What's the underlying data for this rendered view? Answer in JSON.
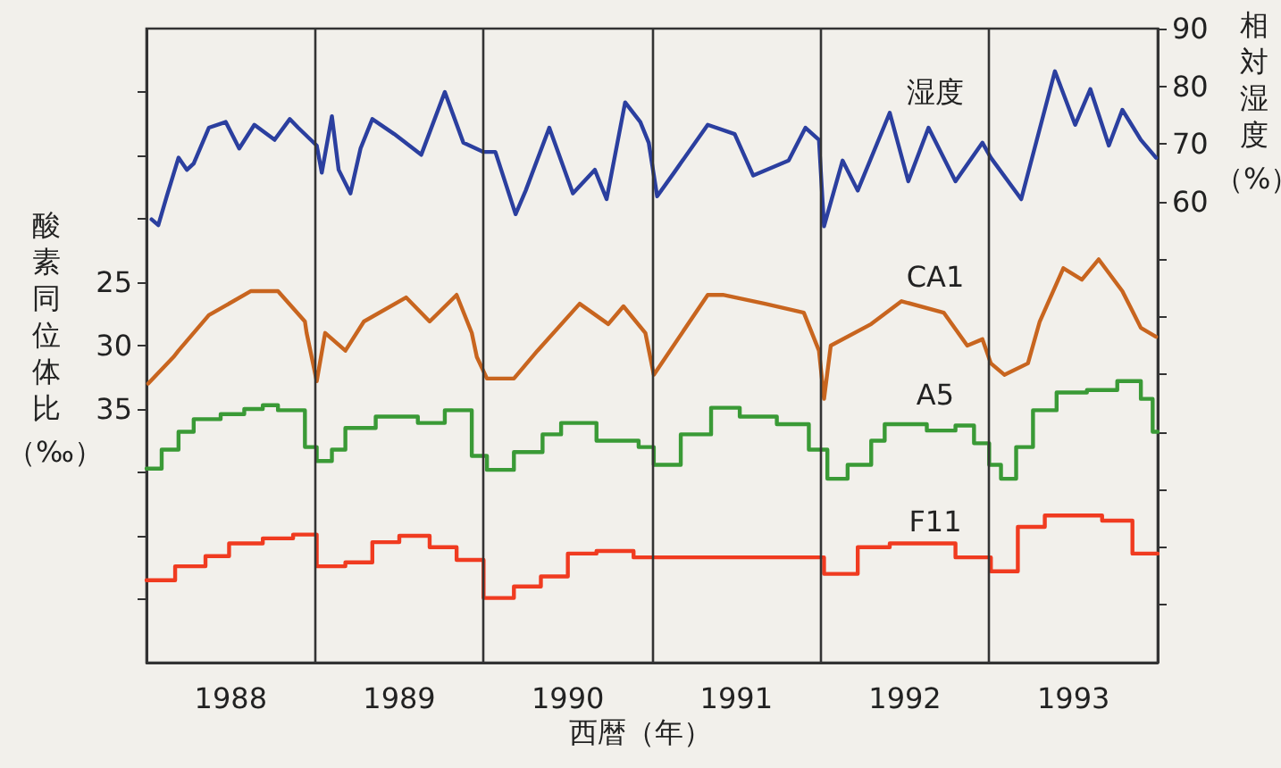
{
  "chart_data": {
    "type": "line",
    "xlabel": "西暦（年）",
    "ylabel": "酸素同位体比（‰）",
    "y2label": "相対湿度（%）",
    "xlim": [
      1988,
      1994
    ],
    "xticks": [
      {
        "value": 1988.5,
        "label": "1988"
      },
      {
        "value": 1989.5,
        "label": "1989"
      },
      {
        "value": 1990.5,
        "label": "1990"
      },
      {
        "value": 1991.5,
        "label": "1991"
      },
      {
        "value": 1992.5,
        "label": "1992"
      },
      {
        "value": 1993.5,
        "label": "1993"
      }
    ],
    "ylim": [
      55,
      5
    ],
    "yticks": [
      {
        "value": 10,
        "label": null
      },
      {
        "value": 15,
        "label": null
      },
      {
        "value": 20,
        "label": null
      },
      25,
      30,
      35,
      {
        "value": 40,
        "label": null
      },
      {
        "value": 45,
        "label": null
      },
      {
        "value": 50,
        "label": null
      }
    ],
    "y2lim": [
      -20,
      90
    ],
    "y2ticks": [
      {
        "value": -10,
        "label": null
      },
      {
        "value": 0,
        "label": null
      },
      {
        "value": 10,
        "label": null
      },
      {
        "value": 20,
        "label": null
      },
      {
        "value": 30,
        "label": null
      },
      {
        "value": 40,
        "label": null
      },
      {
        "value": 50,
        "label": null
      },
      60,
      70,
      80,
      90
    ],
    "grid": false,
    "legend": false,
    "marker": "none",
    "line_style": "solid",
    "ref_lines": [
      {
        "axis": "x",
        "value": 1989,
        "label": null,
        "color": "#333333"
      },
      {
        "axis": "x",
        "value": 1990,
        "label": null,
        "color": "#333333"
      },
      {
        "axis": "x",
        "value": 1991,
        "label": null,
        "color": "#333333"
      },
      {
        "axis": "x",
        "value": 1992,
        "label": null,
        "color": "#333333"
      },
      {
        "axis": "x",
        "value": 1993,
        "label": null,
        "color": "#333333"
      }
    ],
    "series": [
      {
        "name": "湿度",
        "type": "line",
        "axis": "y2",
        "color": "#2b3f9f",
        "x": [
          1988.03,
          1988.07,
          1988.12,
          1988.19,
          1988.24,
          1988.28,
          1988.37,
          1988.47,
          1988.55,
          1988.64,
          1988.76,
          1988.85,
          1988.9,
          1989.01,
          1989.04,
          1989.1,
          1989.14,
          1989.21,
          1989.27,
          1989.34,
          1989.47,
          1989.63,
          1989.77,
          1989.88,
          1990.0,
          1990.07,
          1990.19,
          1990.25,
          1990.39,
          1990.53,
          1990.66,
          1990.73,
          1990.84,
          1990.93,
          1990.98,
          1991.03,
          1991.13,
          1991.33,
          1991.49,
          1991.6,
          1991.81,
          1991.91,
          1991.99,
          1992.02,
          1992.13,
          1992.22,
          1992.41,
          1992.52,
          1992.64,
          1992.8,
          1992.96,
          1993.01,
          1993.19,
          1993.39,
          1993.51,
          1993.6,
          1993.71,
          1993.79,
          1993.9,
          1993.99
        ],
        "values": [
          56.9,
          55.9,
          60.9,
          67.6,
          65.5,
          66.6,
          72.8,
          73.8,
          69.2,
          73.3,
          70.7,
          74.3,
          72.8,
          69.7,
          65.0,
          74.8,
          65.5,
          61.4,
          69.2,
          74.3,
          71.7,
          68.1,
          79.0,
          70.2,
          68.6,
          68.6,
          57.8,
          61.9,
          72.8,
          61.4,
          65.5,
          60.4,
          77.2,
          73.8,
          70.2,
          60.9,
          65.0,
          73.3,
          71.7,
          64.5,
          67.1,
          72.8,
          70.7,
          55.7,
          67.1,
          61.9,
          75.4,
          63.5,
          72.8,
          63.5,
          70.2,
          67.6,
          60.4,
          82.6,
          73.3,
          79.5,
          69.7,
          75.9,
          70.7,
          67.6
        ]
      },
      {
        "name": "CA1",
        "type": "line",
        "color": "#c8651f",
        "x": [
          1988.01,
          1988.16,
          1988.19,
          1988.37,
          1988.62,
          1988.78,
          1988.94,
          1988.95,
          1989.01,
          1989.06,
          1989.18,
          1989.29,
          1989.54,
          1989.68,
          1989.84,
          1989.93,
          1989.96,
          1990.02,
          1990.18,
          1990.32,
          1990.57,
          1990.74,
          1990.83,
          1990.96,
          1991.01,
          1991.33,
          1991.42,
          1991.67,
          1991.9,
          1991.99,
          1992.02,
          1992.06,
          1992.3,
          1992.48,
          1992.73,
          1992.87,
          1992.96,
          1993.01,
          1993.09,
          1993.23,
          1993.3,
          1993.44,
          1993.55,
          1993.65,
          1993.79,
          1993.9,
          1993.99
        ],
        "values": [
          33.0,
          30.9,
          30.4,
          27.6,
          25.7,
          25.7,
          28.1,
          29.0,
          32.8,
          29.0,
          30.4,
          28.1,
          26.2,
          28.1,
          26.0,
          29.0,
          30.9,
          32.6,
          32.6,
          30.4,
          26.7,
          28.3,
          26.9,
          29.0,
          32.3,
          26.0,
          26.0,
          26.7,
          27.4,
          30.4,
          34.2,
          30.0,
          28.3,
          26.5,
          27.4,
          30.0,
          29.5,
          31.4,
          32.3,
          31.4,
          28.1,
          23.9,
          24.8,
          23.2,
          25.7,
          28.6,
          29.3
        ]
      },
      {
        "name": "A5",
        "type": "step",
        "color": "#3a9a36",
        "x": [
          1988.0,
          1988.09,
          1988.19,
          1988.28,
          1988.44,
          1988.58,
          1988.69,
          1988.78,
          1988.94,
          1989.01,
          1989.1,
          1989.18,
          1989.36,
          1989.61,
          1989.77,
          1989.93,
          1990.02,
          1990.18,
          1990.35,
          1990.46,
          1990.67,
          1990.92,
          1991.01,
          1991.17,
          1991.35,
          1991.52,
          1991.74,
          1991.93,
          1992.04,
          1992.16,
          1992.3,
          1992.38,
          1992.63,
          1992.8,
          1992.91,
          1993.0,
          1993.07,
          1993.16,
          1993.26,
          1993.4,
          1993.58,
          1993.76,
          1993.9,
          1993.97,
          1994.0
        ],
        "values": [
          39.7,
          38.2,
          36.8,
          35.8,
          35.4,
          35.0,
          34.7,
          35.1,
          38.0,
          39.1,
          38.2,
          36.5,
          35.6,
          36.1,
          35.1,
          38.7,
          39.8,
          38.4,
          37.0,
          36.1,
          37.5,
          38.0,
          39.4,
          37.0,
          34.9,
          35.6,
          36.2,
          38.2,
          40.5,
          39.4,
          37.5,
          36.2,
          36.7,
          36.3,
          37.7,
          39.4,
          40.5,
          38.0,
          35.1,
          33.7,
          33.5,
          32.8,
          34.2,
          36.8,
          36.8
        ]
      },
      {
        "name": "F11",
        "type": "step",
        "color": "#f03b20",
        "x": [
          1988.0,
          1988.17,
          1988.35,
          1988.49,
          1988.69,
          1988.87,
          1989.01,
          1989.18,
          1989.34,
          1989.5,
          1989.68,
          1989.84,
          1990.0,
          1990.18,
          1990.34,
          1990.5,
          1990.67,
          1990.89,
          1992.02,
          1992.22,
          1992.41,
          1992.8,
          1993.01,
          1993.17,
          1993.33,
          1993.67,
          1993.85,
          1994.0
        ],
        "values": [
          48.5,
          47.4,
          46.6,
          45.6,
          45.2,
          44.9,
          47.4,
          47.1,
          45.5,
          45.0,
          45.9,
          46.9,
          49.9,
          49.0,
          48.2,
          46.4,
          46.2,
          46.7,
          48.0,
          45.9,
          45.6,
          46.7,
          47.8,
          44.3,
          43.4,
          43.8,
          46.4,
          46.4
        ]
      }
    ]
  }
}
